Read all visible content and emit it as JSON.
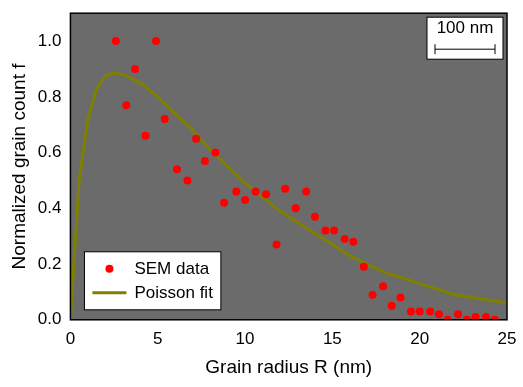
{
  "chart_data": {
    "type": "scatter",
    "x_label": "Grain radius R (nm)",
    "y_label": "Normalized grain count f",
    "annotations": [
      "100 nm"
    ],
    "xlim": [
      0,
      25
    ],
    "xticks": [
      0,
      5,
      10,
      15,
      20,
      25
    ],
    "ylim": [
      0,
      1.1
    ],
    "yticks": [
      {
        "value": 0,
        "label": "0.0"
      },
      0.2,
      0.4,
      0.6,
      0.8,
      {
        "value": 1,
        "label": "1.0"
      }
    ],
    "grid": false,
    "legend": "lower left",
    "series": [
      {
        "name": "SEM data",
        "type": "scatter",
        "color": "#ff0000",
        "marker": "circle",
        "x": [
          2.6,
          3.2,
          3.7,
          4.3,
          4.9,
          5.4,
          6.1,
          6.7,
          7.2,
          7.7,
          8.3,
          8.8,
          9.5,
          10.0,
          10.6,
          11.2,
          11.8,
          12.3,
          12.9,
          13.5,
          14.0,
          14.6,
          15.1,
          15.7,
          16.2,
          16.8,
          17.3,
          17.9,
          18.4,
          18.9,
          19.5,
          20.0,
          20.6,
          21.1,
          21.6,
          22.2,
          22.7,
          23.2,
          23.8,
          24.3
        ],
        "values": [
          1.0,
          0.77,
          0.9,
          0.66,
          1.0,
          0.72,
          0.54,
          0.5,
          0.65,
          0.57,
          0.6,
          0.42,
          0.46,
          0.43,
          0.46,
          0.45,
          0.27,
          0.47,
          0.4,
          0.46,
          0.37,
          0.32,
          0.32,
          0.29,
          0.28,
          0.19,
          0.09,
          0.12,
          0.05,
          0.08,
          0.03,
          0.03,
          0.03,
          0.02,
          0.0,
          0.02,
          0.0,
          0.01,
          0.01,
          0.0
        ]
      },
      {
        "name": "Poisson fit",
        "type": "line",
        "color": "#808000",
        "line_style": "solid",
        "x": [
          0,
          0.3,
          0.5,
          1,
          1.5,
          2,
          2.5,
          3,
          4,
          5,
          6,
          7,
          8,
          9,
          10,
          11,
          12,
          13,
          14,
          15,
          16,
          17,
          18,
          19,
          20,
          21,
          22,
          23,
          24,
          25
        ],
        "values": [
          0,
          0.3,
          0.5,
          0.72,
          0.83,
          0.875,
          0.885,
          0.88,
          0.85,
          0.8,
          0.74,
          0.68,
          0.61,
          0.55,
          0.49,
          0.44,
          0.39,
          0.35,
          0.31,
          0.27,
          0.23,
          0.2,
          0.17,
          0.15,
          0.13,
          0.11,
          0.09,
          0.08,
          0.07,
          0.06
        ]
      }
    ]
  }
}
